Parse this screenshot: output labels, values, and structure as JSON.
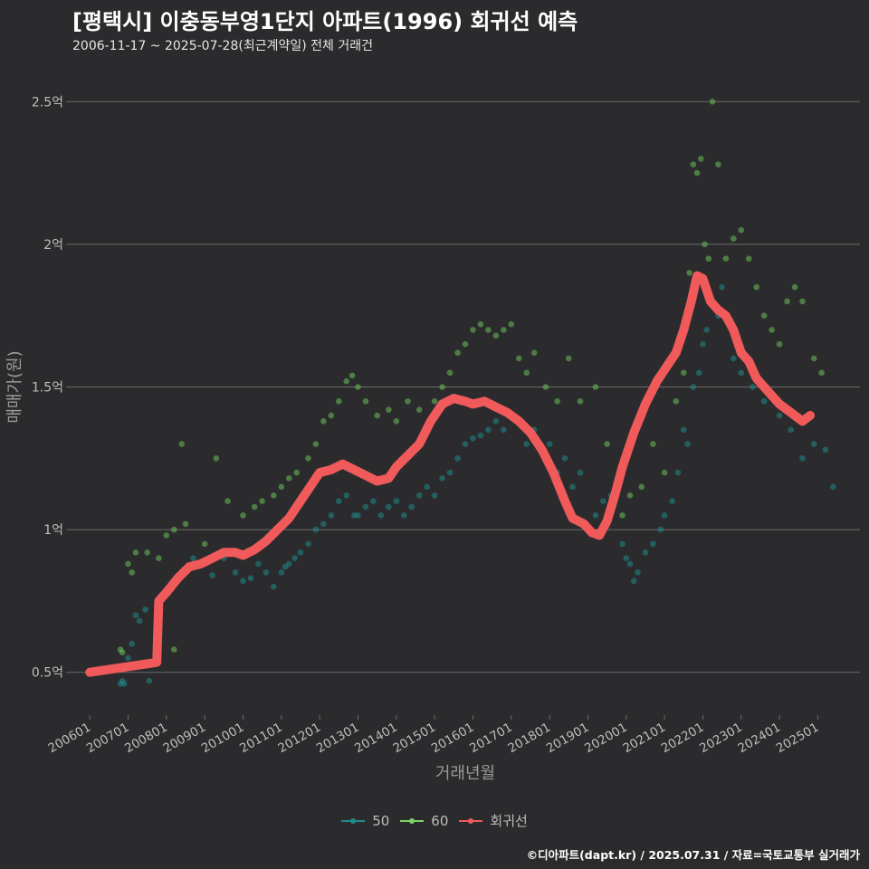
{
  "title": "[평택시] 이충동부영1단지 아파트(1996) 회귀선 예측",
  "subtitle": "2006-11-17 ~ 2025-07-28(최근계약일) 전체 거래건",
  "caption": "©디아파트(dapt.kr) / 2025.07.31 / 자료=국토교통부 실거래가",
  "colors": {
    "background": "#2b2b2d",
    "grid": "#6b6b6b",
    "s50": "#1f8a8a",
    "s60": "#6abf5a",
    "regression": "#f05a5a",
    "text": "#bdbdbd"
  },
  "legend": [
    {
      "name": "50",
      "color": "#1f8a8a"
    },
    {
      "name": "60",
      "color": "#7dd36a"
    },
    {
      "name": "회귀선",
      "color": "#f05a5a"
    }
  ],
  "chart_data": {
    "type": "scatter",
    "xlabel": "거래년월",
    "ylabel": "매매가(원)",
    "xlim": [
      2005.5,
      2026.1
    ],
    "ylim": [
      0.35,
      2.65
    ],
    "x_ticks": [
      {
        "value": 2006.0,
        "label": "200601"
      },
      {
        "value": 2007.0,
        "label": "200701"
      },
      {
        "value": 2008.0,
        "label": "200801"
      },
      {
        "value": 2009.0,
        "label": "200901"
      },
      {
        "value": 2010.0,
        "label": "201001"
      },
      {
        "value": 2011.0,
        "label": "201101"
      },
      {
        "value": 2012.0,
        "label": "201201"
      },
      {
        "value": 2013.0,
        "label": "201301"
      },
      {
        "value": 2014.0,
        "label": "201401"
      },
      {
        "value": 2015.0,
        "label": "201501"
      },
      {
        "value": 2016.0,
        "label": "201601"
      },
      {
        "value": 2017.0,
        "label": "201701"
      },
      {
        "value": 2018.0,
        "label": "201801"
      },
      {
        "value": 2019.0,
        "label": "201901"
      },
      {
        "value": 2020.0,
        "label": "202001"
      },
      {
        "value": 2021.0,
        "label": "202101"
      },
      {
        "value": 2022.0,
        "label": "202201"
      },
      {
        "value": 2023.0,
        "label": "202301"
      },
      {
        "value": 2024.0,
        "label": "202401"
      },
      {
        "value": 2025.0,
        "label": "202501"
      }
    ],
    "y_ticks": [
      {
        "value": 0.5,
        "label": "0.5억"
      },
      {
        "value": 1.0,
        "label": "1억"
      },
      {
        "value": 1.5,
        "label": "1.5억"
      },
      {
        "value": 2.0,
        "label": "2억"
      },
      {
        "value": 2.5,
        "label": "2.5억"
      }
    ],
    "grid": true,
    "legend_position": "bottom",
    "series": [
      {
        "name": "50",
        "points": [
          [
            2006.8,
            0.46
          ],
          [
            2006.85,
            0.47
          ],
          [
            2006.9,
            0.46
          ],
          [
            2007.0,
            0.55
          ],
          [
            2007.1,
            0.6
          ],
          [
            2007.2,
            0.7
          ],
          [
            2007.3,
            0.68
          ],
          [
            2007.45,
            0.72
          ],
          [
            2007.55,
            0.47
          ],
          [
            2008.3,
            0.82
          ],
          [
            2008.7,
            0.9
          ],
          [
            2008.9,
            0.88
          ],
          [
            2009.2,
            0.84
          ],
          [
            2009.5,
            0.9
          ],
          [
            2009.8,
            0.85
          ],
          [
            2010.0,
            0.82
          ],
          [
            2010.2,
            0.83
          ],
          [
            2010.4,
            0.88
          ],
          [
            2010.6,
            0.85
          ],
          [
            2010.8,
            0.8
          ],
          [
            2011.0,
            0.85
          ],
          [
            2011.1,
            0.87
          ],
          [
            2011.2,
            0.88
          ],
          [
            2011.35,
            0.9
          ],
          [
            2011.5,
            0.92
          ],
          [
            2011.7,
            0.95
          ],
          [
            2011.9,
            1.0
          ],
          [
            2012.1,
            1.02
          ],
          [
            2012.3,
            1.05
          ],
          [
            2012.5,
            1.1
          ],
          [
            2012.7,
            1.12
          ],
          [
            2012.9,
            1.05
          ],
          [
            2013.0,
            1.05
          ],
          [
            2013.2,
            1.08
          ],
          [
            2013.4,
            1.1
          ],
          [
            2013.6,
            1.05
          ],
          [
            2013.8,
            1.08
          ],
          [
            2014.0,
            1.1
          ],
          [
            2014.2,
            1.05
          ],
          [
            2014.4,
            1.08
          ],
          [
            2014.6,
            1.12
          ],
          [
            2014.8,
            1.15
          ],
          [
            2015.0,
            1.12
          ],
          [
            2015.2,
            1.18
          ],
          [
            2015.4,
            1.2
          ],
          [
            2015.6,
            1.25
          ],
          [
            2015.8,
            1.3
          ],
          [
            2016.0,
            1.32
          ],
          [
            2016.2,
            1.33
          ],
          [
            2016.4,
            1.35
          ],
          [
            2016.6,
            1.38
          ],
          [
            2016.8,
            1.35
          ],
          [
            2017.0,
            1.4
          ],
          [
            2017.2,
            1.38
          ],
          [
            2017.4,
            1.3
          ],
          [
            2017.6,
            1.35
          ],
          [
            2017.8,
            1.28
          ],
          [
            2018.0,
            1.3
          ],
          [
            2018.2,
            1.2
          ],
          [
            2018.4,
            1.25
          ],
          [
            2018.6,
            1.15
          ],
          [
            2018.8,
            1.2
          ],
          [
            2019.0,
            1.0
          ],
          [
            2019.2,
            1.05
          ],
          [
            2019.4,
            1.1
          ],
          [
            2019.6,
            1.12
          ],
          [
            2019.9,
            0.95
          ],
          [
            2020.0,
            0.9
          ],
          [
            2020.1,
            0.88
          ],
          [
            2020.2,
            0.82
          ],
          [
            2020.3,
            0.85
          ],
          [
            2020.5,
            0.92
          ],
          [
            2020.7,
            0.95
          ],
          [
            2020.9,
            1.0
          ],
          [
            2021.0,
            1.05
          ],
          [
            2021.2,
            1.1
          ],
          [
            2021.35,
            1.2
          ],
          [
            2021.5,
            1.35
          ],
          [
            2021.6,
            1.3
          ],
          [
            2021.75,
            1.5
          ],
          [
            2021.9,
            1.55
          ],
          [
            2022.0,
            1.65
          ],
          [
            2022.1,
            1.7
          ],
          [
            2022.25,
            1.8
          ],
          [
            2022.4,
            1.75
          ],
          [
            2022.5,
            1.85
          ],
          [
            2022.8,
            1.6
          ],
          [
            2023.0,
            1.55
          ],
          [
            2023.3,
            1.5
          ],
          [
            2023.6,
            1.45
          ],
          [
            2024.0,
            1.4
          ],
          [
            2024.3,
            1.35
          ],
          [
            2024.6,
            1.25
          ],
          [
            2024.9,
            1.3
          ],
          [
            2025.2,
            1.28
          ],
          [
            2025.4,
            1.15
          ]
        ]
      },
      {
        "name": "60",
        "points": [
          [
            2006.8,
            0.58
          ],
          [
            2006.85,
            0.57
          ],
          [
            2007.0,
            0.88
          ],
          [
            2007.1,
            0.85
          ],
          [
            2007.2,
            0.92
          ],
          [
            2007.5,
            0.92
          ],
          [
            2007.8,
            0.9
          ],
          [
            2008.0,
            0.98
          ],
          [
            2008.2,
            1.0
          ],
          [
            2008.4,
            1.3
          ],
          [
            2008.5,
            1.02
          ],
          [
            2008.2,
            0.58
          ],
          [
            2009.0,
            0.95
          ],
          [
            2009.3,
            1.25
          ],
          [
            2009.6,
            1.1
          ],
          [
            2010.0,
            1.05
          ],
          [
            2010.3,
            1.08
          ],
          [
            2010.5,
            1.1
          ],
          [
            2010.8,
            1.12
          ],
          [
            2011.0,
            1.15
          ],
          [
            2011.2,
            1.18
          ],
          [
            2011.4,
            1.2
          ],
          [
            2011.7,
            1.25
          ],
          [
            2011.9,
            1.3
          ],
          [
            2012.1,
            1.38
          ],
          [
            2012.3,
            1.4
          ],
          [
            2012.5,
            1.45
          ],
          [
            2012.7,
            1.52
          ],
          [
            2012.85,
            1.54
          ],
          [
            2013.0,
            1.5
          ],
          [
            2013.2,
            1.45
          ],
          [
            2013.5,
            1.4
          ],
          [
            2013.8,
            1.42
          ],
          [
            2014.0,
            1.38
          ],
          [
            2014.3,
            1.45
          ],
          [
            2014.6,
            1.42
          ],
          [
            2015.0,
            1.45
          ],
          [
            2015.2,
            1.5
          ],
          [
            2015.4,
            1.55
          ],
          [
            2015.6,
            1.62
          ],
          [
            2015.8,
            1.65
          ],
          [
            2016.0,
            1.7
          ],
          [
            2016.2,
            1.72
          ],
          [
            2016.4,
            1.7
          ],
          [
            2016.6,
            1.68
          ],
          [
            2016.8,
            1.7
          ],
          [
            2017.0,
            1.72
          ],
          [
            2017.2,
            1.6
          ],
          [
            2017.4,
            1.55
          ],
          [
            2017.6,
            1.62
          ],
          [
            2017.9,
            1.5
          ],
          [
            2018.2,
            1.45
          ],
          [
            2018.5,
            1.6
          ],
          [
            2018.8,
            1.45
          ],
          [
            2019.2,
            1.5
          ],
          [
            2019.5,
            1.3
          ],
          [
            2019.7,
            1.1
          ],
          [
            2019.9,
            1.05
          ],
          [
            2020.1,
            1.12
          ],
          [
            2020.4,
            1.15
          ],
          [
            2020.7,
            1.3
          ],
          [
            2021.0,
            1.2
          ],
          [
            2021.3,
            1.45
          ],
          [
            2021.5,
            1.55
          ],
          [
            2021.65,
            1.9
          ],
          [
            2021.75,
            2.28
          ],
          [
            2021.85,
            2.25
          ],
          [
            2021.95,
            2.3
          ],
          [
            2022.05,
            2.0
          ],
          [
            2022.15,
            1.95
          ],
          [
            2022.25,
            2.5
          ],
          [
            2022.4,
            2.28
          ],
          [
            2022.6,
            1.95
          ],
          [
            2022.8,
            2.02
          ],
          [
            2023.0,
            2.05
          ],
          [
            2023.2,
            1.95
          ],
          [
            2023.4,
            1.85
          ],
          [
            2023.6,
            1.75
          ],
          [
            2023.8,
            1.7
          ],
          [
            2024.0,
            1.65
          ],
          [
            2024.2,
            1.8
          ],
          [
            2024.4,
            1.85
          ],
          [
            2024.6,
            1.8
          ],
          [
            2024.9,
            1.6
          ],
          [
            2025.1,
            1.55
          ]
        ]
      },
      {
        "name": "회귀선",
        "points": [
          [
            2006.0,
            0.5
          ],
          [
            2006.5,
            0.51
          ],
          [
            2007.0,
            0.52
          ],
          [
            2007.5,
            0.53
          ],
          [
            2007.75,
            0.535
          ],
          [
            2007.8,
            0.75
          ],
          [
            2008.0,
            0.78
          ],
          [
            2008.3,
            0.83
          ],
          [
            2008.6,
            0.87
          ],
          [
            2008.9,
            0.88
          ],
          [
            2009.2,
            0.9
          ],
          [
            2009.5,
            0.92
          ],
          [
            2009.8,
            0.92
          ],
          [
            2010.0,
            0.91
          ],
          [
            2010.3,
            0.93
          ],
          [
            2010.6,
            0.96
          ],
          [
            2010.9,
            1.0
          ],
          [
            2011.2,
            1.04
          ],
          [
            2011.5,
            1.1
          ],
          [
            2011.8,
            1.16
          ],
          [
            2012.0,
            1.2
          ],
          [
            2012.3,
            1.21
          ],
          [
            2012.6,
            1.23
          ],
          [
            2012.9,
            1.21
          ],
          [
            2013.2,
            1.19
          ],
          [
            2013.5,
            1.17
          ],
          [
            2013.8,
            1.18
          ],
          [
            2014.0,
            1.22
          ],
          [
            2014.3,
            1.26
          ],
          [
            2014.6,
            1.3
          ],
          [
            2014.9,
            1.38
          ],
          [
            2015.2,
            1.44
          ],
          [
            2015.5,
            1.46
          ],
          [
            2015.8,
            1.45
          ],
          [
            2016.0,
            1.44
          ],
          [
            2016.3,
            1.45
          ],
          [
            2016.6,
            1.43
          ],
          [
            2016.9,
            1.41
          ],
          [
            2017.2,
            1.38
          ],
          [
            2017.5,
            1.34
          ],
          [
            2017.8,
            1.28
          ],
          [
            2018.1,
            1.2
          ],
          [
            2018.4,
            1.1
          ],
          [
            2018.6,
            1.04
          ],
          [
            2018.9,
            1.02
          ],
          [
            2019.1,
            0.99
          ],
          [
            2019.3,
            0.98
          ],
          [
            2019.5,
            1.03
          ],
          [
            2019.7,
            1.12
          ],
          [
            2019.9,
            1.22
          ],
          [
            2020.2,
            1.34
          ],
          [
            2020.5,
            1.44
          ],
          [
            2020.8,
            1.52
          ],
          [
            2021.0,
            1.56
          ],
          [
            2021.3,
            1.62
          ],
          [
            2021.5,
            1.7
          ],
          [
            2021.7,
            1.8
          ],
          [
            2021.85,
            1.89
          ],
          [
            2022.0,
            1.88
          ],
          [
            2022.2,
            1.8
          ],
          [
            2022.4,
            1.77
          ],
          [
            2022.6,
            1.75
          ],
          [
            2022.8,
            1.7
          ],
          [
            2023.0,
            1.62
          ],
          [
            2023.2,
            1.59
          ],
          [
            2023.4,
            1.53
          ],
          [
            2023.6,
            1.5
          ],
          [
            2023.8,
            1.47
          ],
          [
            2024.0,
            1.44
          ],
          [
            2024.2,
            1.42
          ],
          [
            2024.4,
            1.4
          ],
          [
            2024.6,
            1.38
          ],
          [
            2024.8,
            1.4
          ]
        ]
      }
    ]
  }
}
